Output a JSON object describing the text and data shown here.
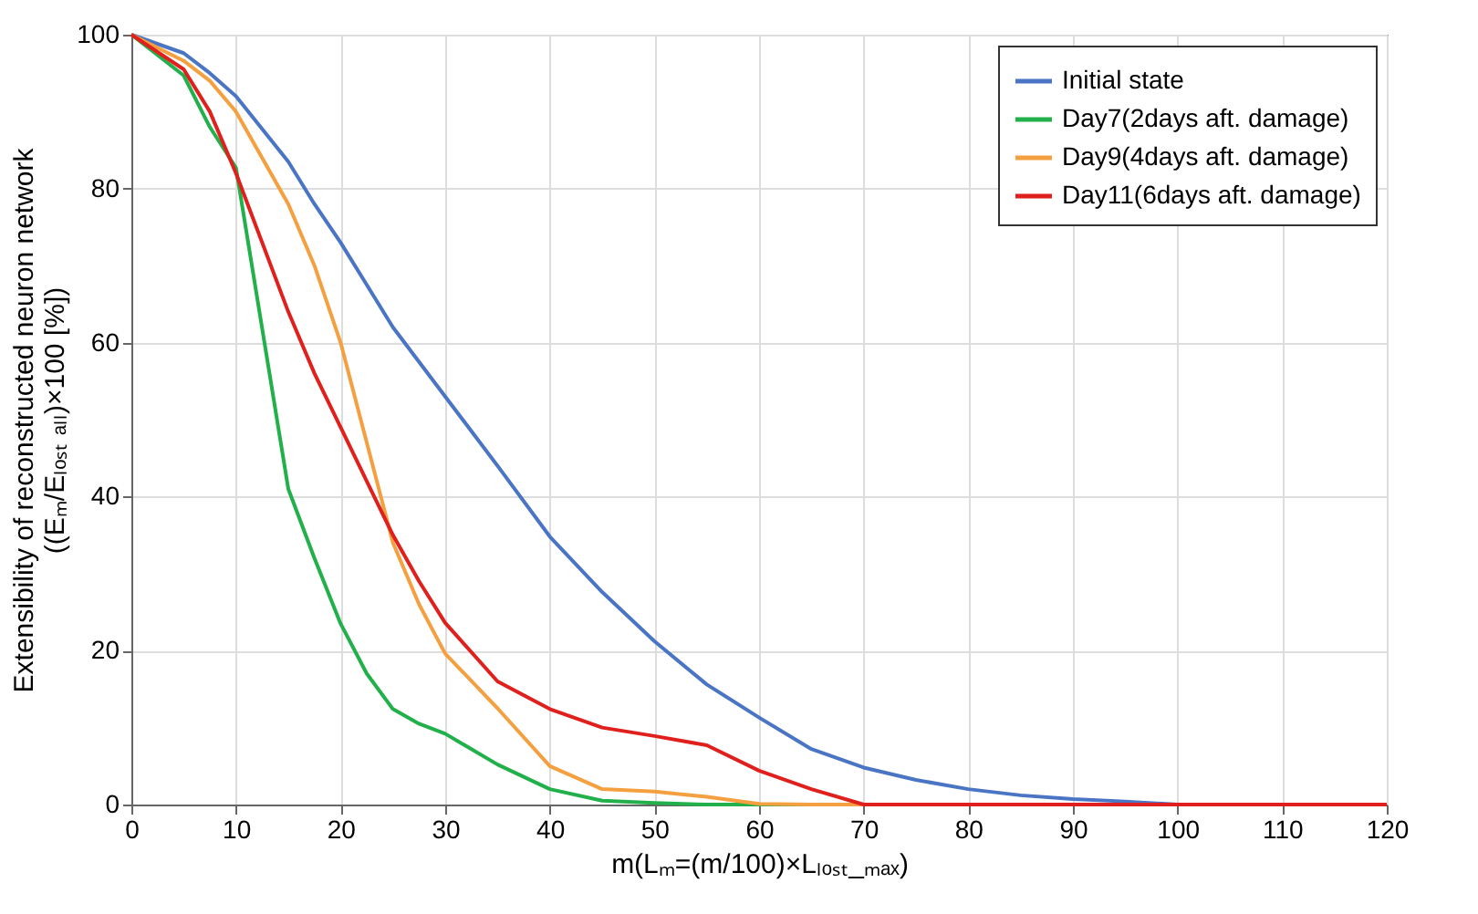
{
  "chart_data": {
    "type": "line",
    "xlabel": "m(Lₘ=(m/100)×Lₗₒₛₜ_ₘₐₓ)",
    "ylabel": "Extensibility of reconstructed neuron network\n((Eₘ/Eₗₒₛₜ ₐₗₗ)×100 [%])",
    "x": [
      0,
      5,
      7.5,
      10,
      15,
      17.5,
      20,
      22.5,
      25,
      27.5,
      30,
      35,
      40,
      45,
      50,
      55,
      60,
      65,
      70,
      75,
      80,
      85,
      90,
      95,
      100,
      105,
      110,
      115,
      120
    ],
    "series": [
      {
        "name": "Initial state",
        "color": "#4a74c4",
        "values": [
          100,
          97.6,
          95,
          92,
          83.5,
          78,
          73,
          67.5,
          62,
          57.5,
          53,
          44,
          34.8,
          27.6,
          21.2,
          15.6,
          11.3,
          7.2,
          4.8,
          3.2,
          2,
          1.2,
          0.7,
          0.4,
          0,
          null,
          null,
          null,
          null
        ]
      },
      {
        "name": "Day7(2days aft. damage)",
        "color": "#22b04b",
        "values": [
          100,
          94.7,
          88,
          82.7,
          41,
          32,
          23.5,
          17,
          12.4,
          10.5,
          9.2,
          5.2,
          2,
          0.5,
          0.2,
          0,
          0,
          0,
          null,
          null,
          null,
          null,
          null,
          null,
          null,
          null,
          null,
          null,
          null
        ]
      },
      {
        "name": "Day9(4days aft. damage)",
        "color": "#f5a040",
        "values": [
          100,
          96.6,
          94,
          90,
          78,
          70,
          60,
          47,
          34,
          26,
          19.6,
          12.5,
          5,
          2,
          1.7,
          1,
          0.1,
          0,
          0,
          null,
          null,
          null,
          null,
          null,
          null,
          null,
          null,
          null,
          null
        ]
      },
      {
        "name": "Day11(6days aft. damage)",
        "color": "#e0201c",
        "values": [
          100,
          95.5,
          90,
          82,
          64,
          56,
          49,
          42,
          35,
          29,
          23.6,
          16,
          12.4,
          10,
          8.9,
          7.7,
          4.4,
          2,
          0,
          0,
          0,
          0,
          0,
          0,
          0,
          0,
          0,
          0,
          0
        ]
      }
    ],
    "xlim": [
      0,
      120
    ],
    "xticks": [
      0,
      10,
      20,
      30,
      40,
      50,
      60,
      70,
      80,
      90,
      100,
      110,
      120
    ],
    "ylim": [
      0,
      100
    ],
    "yticks": [
      0,
      20,
      40,
      60,
      80,
      100
    ],
    "grid": true,
    "legend": "top right",
    "marker": "none",
    "line_style": "solid"
  }
}
